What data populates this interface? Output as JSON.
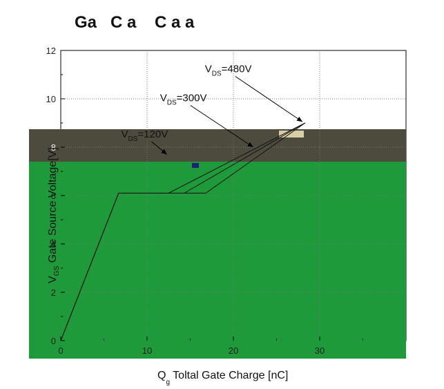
{
  "chart_data": {
    "type": "line",
    "title": "Ga   C a    C a a",
    "xlabel": {
      "main": "Q",
      "sub": "g",
      "rest": " Toltal Gate Charge [nC]"
    },
    "ylabel": {
      "main": "V",
      "sub": "GS",
      "rest": " Gate Source Voltage[V]"
    },
    "xlim": [
      0,
      40
    ],
    "ylim": [
      0,
      12
    ],
    "xticks": [
      0,
      10,
      20,
      30
    ],
    "yticks": [
      0,
      2,
      4,
      6,
      8,
      10,
      12
    ],
    "grid": true,
    "overlay_colors": {
      "green": "#1f9a3a",
      "dark": "#4d4a3e"
    },
    "series": [
      {
        "name": "VDS=120V",
        "x": [
          0,
          6.7,
          16.8,
          28.3
        ],
        "y": [
          0,
          6.1,
          6.1,
          9.0
        ]
      },
      {
        "name": "VDS=300V",
        "x": [
          0,
          6.7,
          14.3,
          28.3
        ],
        "y": [
          0,
          6.1,
          6.1,
          9.0
        ]
      },
      {
        "name": "VDS=480V",
        "x": [
          0,
          6.7,
          12.5,
          28.3
        ],
        "y": [
          0,
          6.1,
          6.1,
          9.0
        ]
      }
    ],
    "annotations": [
      {
        "main": "V",
        "sub": "DS",
        "rest": "=480V",
        "x": 16.7,
        "y": 11.1,
        "arrow_to": [
          28.0,
          9.05
        ]
      },
      {
        "main": "V",
        "sub": "DS",
        "rest": "=300V",
        "x": 11.5,
        "y": 9.9,
        "arrow_to": [
          22.3,
          8.0
        ]
      },
      {
        "main": "V",
        "sub": "DS",
        "rest": "=120V",
        "x": 7.0,
        "y": 8.4,
        "arrow_to": [
          12.3,
          7.7
        ]
      }
    ]
  }
}
